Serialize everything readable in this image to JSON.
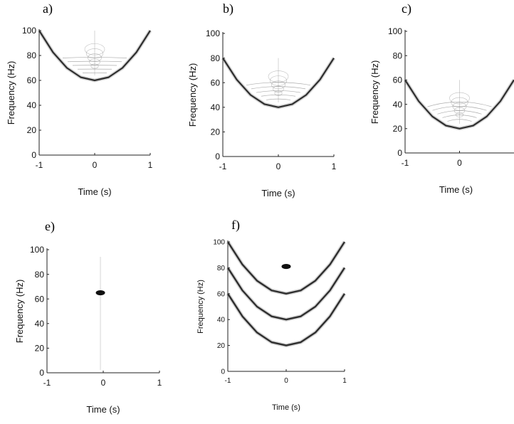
{
  "panels": [
    {
      "id": "a",
      "letter": "a)"
    },
    {
      "id": "b",
      "letter": "b)"
    },
    {
      "id": "c",
      "letter": "c)"
    },
    {
      "id": "e",
      "letter": "e)"
    },
    {
      "id": "f",
      "letter": "f)"
    }
  ],
  "colors": {
    "curve": "#2e2e2e",
    "blob": "#111111",
    "axis": "#222222",
    "fringe": "#8a8a8a"
  },
  "chart_data": [
    {
      "panel": "a)",
      "type": "line",
      "xlabel": "Time (s)",
      "ylabel": "Frequency (Hz)",
      "xlim": [
        -1,
        1
      ],
      "ylim": [
        0,
        100
      ],
      "x_ticks": [
        "-1",
        "0",
        "1"
      ],
      "y_ticks": [
        "0",
        "20",
        "40",
        "60",
        "80",
        "100"
      ],
      "series": [
        {
          "x": [
            -1,
            -0.75,
            -0.5,
            -0.25,
            0,
            0.25,
            0.5,
            0.75,
            1
          ],
          "values": [
            100,
            82.5,
            70,
            62.5,
            60,
            62.5,
            70,
            82.5,
            100
          ]
        }
      ],
      "interference": true
    },
    {
      "panel": "b)",
      "type": "line",
      "xlabel": "Time (s)",
      "ylabel": "Frequency (Hz)",
      "xlim": [
        -1,
        1
      ],
      "ylim": [
        0,
        100
      ],
      "x_ticks": [
        "-1",
        "0",
        "1"
      ],
      "y_ticks": [
        "0",
        "20",
        "40",
        "60",
        "80",
        "100"
      ],
      "series": [
        {
          "x": [
            -1,
            -0.75,
            -0.5,
            -0.25,
            0,
            0.25,
            0.5,
            0.75,
            1
          ],
          "values": [
            80,
            62.5,
            50,
            42.5,
            40,
            42.5,
            50,
            62.5,
            80
          ]
        }
      ],
      "interference": true
    },
    {
      "panel": "c)",
      "type": "line",
      "xlabel": "Time (s)",
      "ylabel": "Frequency (Hz)",
      "xlim": [
        -1,
        1
      ],
      "ylim": [
        0,
        100
      ],
      "x_ticks": [
        "-1",
        "0"
      ],
      "y_ticks": [
        "0",
        "20",
        "40",
        "60",
        "80",
        "100"
      ],
      "series": [
        {
          "x": [
            -1,
            -0.75,
            -0.5,
            -0.25,
            0,
            0.25,
            0.5,
            0.75,
            1
          ],
          "values": [
            60,
            42.5,
            30,
            22.5,
            20,
            22.5,
            30,
            42.5,
            60
          ]
        }
      ],
      "interference": true
    },
    {
      "panel": "e)",
      "type": "scatter",
      "xlabel": "Time (s)",
      "ylabel": "Frequency (Hz)",
      "xlim": [
        -1,
        1
      ],
      "ylim": [
        0,
        100
      ],
      "x_ticks": [
        "-1",
        "0",
        "1"
      ],
      "y_ticks": [
        "0",
        "20",
        "40",
        "60",
        "80",
        "100"
      ],
      "points": [
        {
          "x": -0.05,
          "y": 65
        }
      ]
    },
    {
      "panel": "f)",
      "type": "line",
      "xlabel": "Time (s)",
      "ylabel": "Frequency (Hz)",
      "xlim": [
        -1,
        1
      ],
      "ylim": [
        0,
        100
      ],
      "x_ticks": [
        "-1",
        "0",
        "1"
      ],
      "y_ticks": [
        "0",
        "20",
        "40",
        "60",
        "80",
        "100"
      ],
      "series": [
        {
          "x": [
            -1,
            -0.75,
            -0.5,
            -0.25,
            0,
            0.25,
            0.5,
            0.75,
            1
          ],
          "values": [
            100,
            82.5,
            70,
            62.5,
            60,
            62.5,
            70,
            82.5,
            100
          ]
        },
        {
          "x": [
            -1,
            -0.75,
            -0.5,
            -0.25,
            0,
            0.25,
            0.5,
            0.75,
            1
          ],
          "values": [
            80,
            62.5,
            50,
            42.5,
            40,
            42.5,
            50,
            62.5,
            80
          ]
        },
        {
          "x": [
            -1,
            -0.75,
            -0.5,
            -0.25,
            0,
            0.25,
            0.5,
            0.75,
            1
          ],
          "values": [
            60,
            42.5,
            30,
            22.5,
            20,
            22.5,
            30,
            42.5,
            60
          ]
        }
      ],
      "points": [
        {
          "x": 0,
          "y": 81
        }
      ]
    }
  ]
}
